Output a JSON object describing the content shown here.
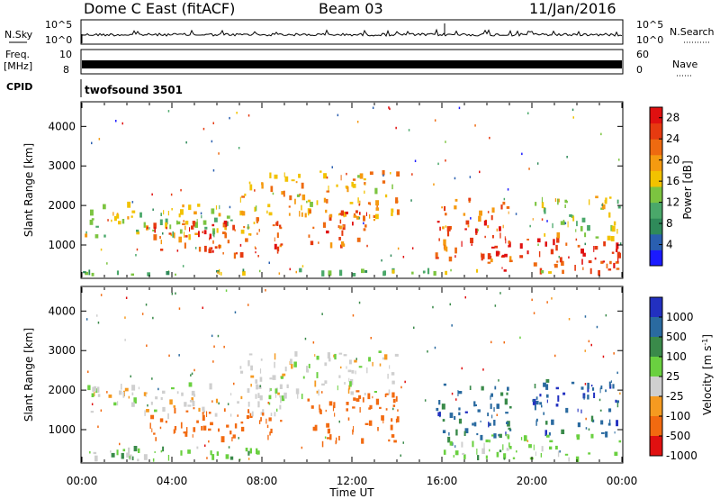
{
  "header": {
    "station": "Dome C East (fitACF)",
    "beam": "Beam 03",
    "date": "11/Jan/2016"
  },
  "strips": {
    "nsky_label": "N.Sky",
    "nsky_ticks": [
      "10^5",
      "10^0"
    ],
    "nsearch_label": "N.Search",
    "freq_label": "Freq.",
    "freq_unit": "[MHz]",
    "freq_ticks": [
      "10",
      "8"
    ],
    "nave_label": "Nave",
    "nave_ticks": [
      "60",
      "0"
    ],
    "cpid_label": "CPID",
    "cpid_value": "twofsound 3501"
  },
  "colors": {
    "power": [
      "#1a1aff",
      "#2a5fb0",
      "#2f8a5a",
      "#4aa86a",
      "#7cc440",
      "#f2c200",
      "#f59a10",
      "#ee6a10",
      "#e63a10",
      "#e01010"
    ],
    "velocity": [
      "#e01010",
      "#f26a10",
      "#f59a20",
      "#cfcfcf",
      "#6ad040",
      "#3a8a4a",
      "#2a6aa0",
      "#2230c0"
    ]
  },
  "chart_data": [
    {
      "type": "heatmap",
      "name": "power",
      "ylabel": "Slant Range [km]",
      "y_ticks": [
        1000,
        2000,
        3000,
        4000
      ],
      "ylim": [
        180,
        4600
      ],
      "x_ticks": [
        "00:00",
        "04:00",
        "08:00",
        "12:00",
        "16:00",
        "20:00",
        "00:00"
      ],
      "colorbar": {
        "label": "Power [dB]",
        "ticks": [
          4,
          8,
          12,
          16,
          20,
          24,
          28
        ],
        "range": [
          0,
          30
        ]
      },
      "regions": [
        {
          "t0": 0.0,
          "t1": 8.0,
          "r0": 1250,
          "r1": 2100,
          "level": 15
        },
        {
          "t0": 3.0,
          "t1": 9.0,
          "r0": 800,
          "r1": 1700,
          "level": 25
        },
        {
          "t0": 7.0,
          "t1": 14.0,
          "r0": 1700,
          "r1": 2900,
          "level": 19
        },
        {
          "t0": 10.0,
          "t1": 13.0,
          "r0": 1000,
          "r1": 1900,
          "level": 24
        },
        {
          "t0": 15.7,
          "t1": 19.0,
          "r0": 600,
          "r1": 2200,
          "level": 23
        },
        {
          "t0": 18.0,
          "t1": 24.0,
          "r0": 300,
          "r1": 1200,
          "level": 26
        },
        {
          "t0": 20.0,
          "t1": 24.0,
          "r0": 1200,
          "r1": 2300,
          "level": 14
        },
        {
          "t0": 0.0,
          "t1": 24.0,
          "r0": 180,
          "r1": 420,
          "level": 13
        }
      ]
    },
    {
      "type": "heatmap",
      "name": "velocity",
      "ylabel": "Slant Range [km]",
      "xlabel": "Time UT",
      "y_ticks": [
        1000,
        2000,
        3000,
        4000
      ],
      "ylim": [
        180,
        4600
      ],
      "x_ticks": [
        "00:00",
        "04:00",
        "08:00",
        "12:00",
        "16:00",
        "20:00",
        "00:00"
      ],
      "colorbar": {
        "label": "Velocity [m s^-1]",
        "ticks": [
          1000,
          500,
          100,
          25,
          -25,
          -100,
          -500,
          -1000
        ]
      },
      "regions": [
        {
          "t0": 0.0,
          "t1": 9.0,
          "r0": 1400,
          "r1": 2200,
          "velocity": 0
        },
        {
          "t0": 7.0,
          "t1": 14.0,
          "r0": 1900,
          "r1": 3000,
          "velocity": 0
        },
        {
          "t0": 3.0,
          "t1": 9.0,
          "r0": 800,
          "r1": 1600,
          "velocity": -300
        },
        {
          "t0": 10.0,
          "t1": 14.0,
          "r0": 700,
          "r1": 2000,
          "velocity": -300
        },
        {
          "t0": 15.7,
          "t1": 19.0,
          "r0": 600,
          "r1": 2200,
          "velocity": 700
        },
        {
          "t0": 20.0,
          "t1": 24.0,
          "r0": 900,
          "r1": 2300,
          "velocity": 800
        },
        {
          "t0": 16.0,
          "t1": 24.0,
          "r0": 300,
          "r1": 900,
          "velocity": 50
        },
        {
          "t0": 0.0,
          "t1": 8.0,
          "r0": 180,
          "r1": 600,
          "velocity": 60
        }
      ]
    }
  ]
}
